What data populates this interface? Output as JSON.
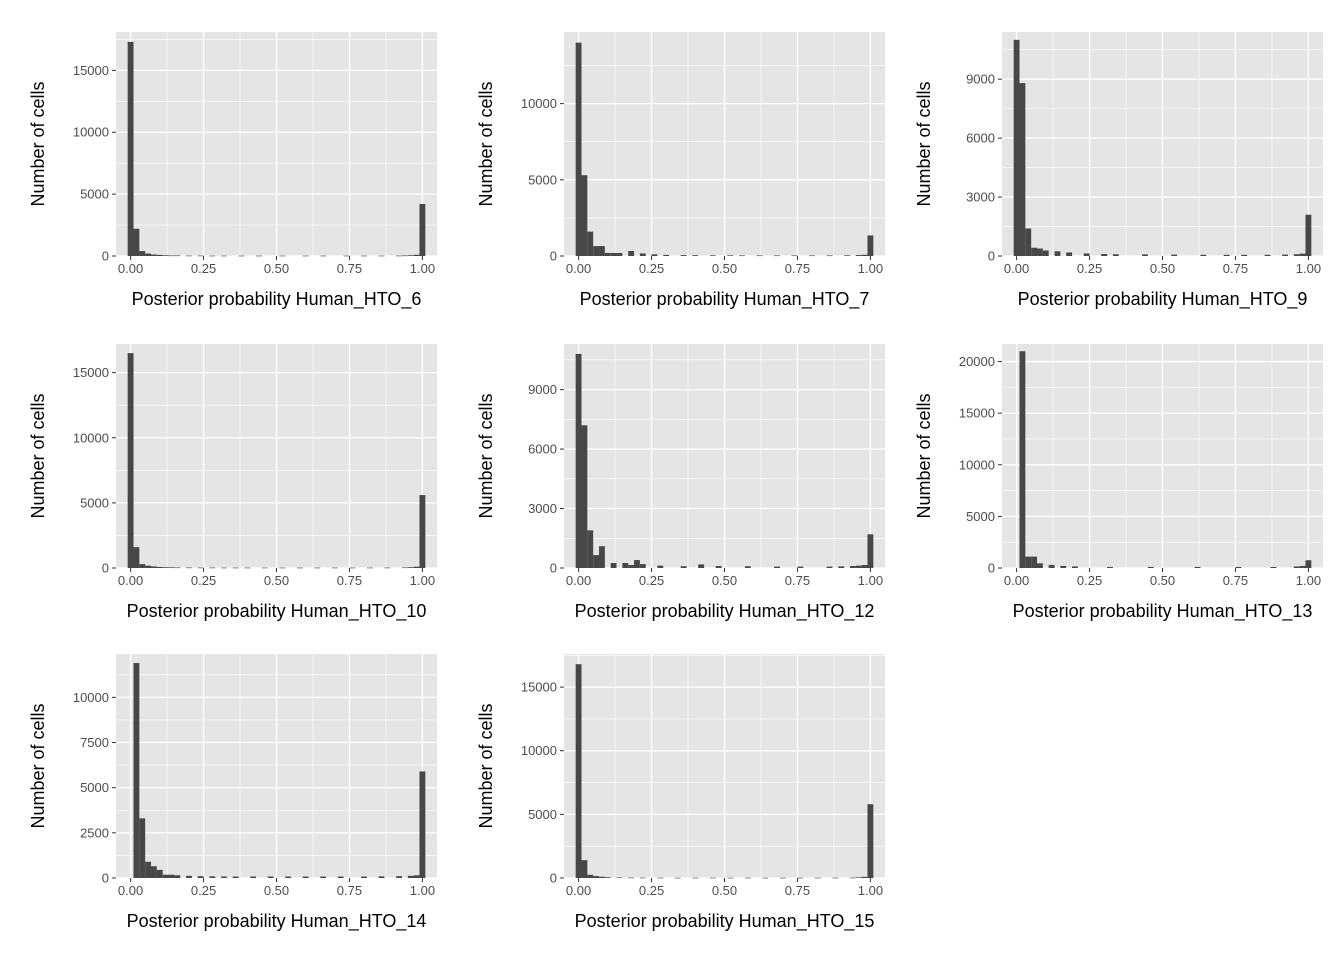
{
  "chart_data": [
    {
      "type": "bar",
      "title": "",
      "xlabel": "Posterior probability Human_HTO_6",
      "ylabel": "Number of cells",
      "xlim": [
        -0.05,
        1.05
      ],
      "ylim": [
        0,
        18100
      ],
      "x_ticks": [
        0.0,
        0.25,
        0.5,
        0.75,
        1.0
      ],
      "x_tick_labels": [
        "0.00",
        "0.25",
        "0.50",
        "0.75",
        "1.00"
      ],
      "y_ticks": [
        0,
        5000,
        10000,
        15000
      ],
      "y_tick_labels": [
        "0",
        "5000",
        "10000",
        "15000"
      ],
      "bin_width": 0.02,
      "bins": [
        {
          "x": 0.0,
          "count": 17300
        },
        {
          "x": 0.02,
          "count": 2200
        },
        {
          "x": 0.04,
          "count": 400
        },
        {
          "x": 0.06,
          "count": 200
        },
        {
          "x": 0.08,
          "count": 120
        },
        {
          "x": 0.1,
          "count": 90
        },
        {
          "x": 0.12,
          "count": 60
        },
        {
          "x": 0.14,
          "count": 40
        },
        {
          "x": 0.16,
          "count": 40
        },
        {
          "x": 0.2,
          "count": 30
        },
        {
          "x": 0.24,
          "count": 30
        },
        {
          "x": 0.28,
          "count": 25
        },
        {
          "x": 0.32,
          "count": 25
        },
        {
          "x": 0.38,
          "count": 25
        },
        {
          "x": 0.44,
          "count": 25
        },
        {
          "x": 0.52,
          "count": 25
        },
        {
          "x": 0.6,
          "count": 25
        },
        {
          "x": 0.66,
          "count": 25
        },
        {
          "x": 0.74,
          "count": 25
        },
        {
          "x": 0.8,
          "count": 25
        },
        {
          "x": 0.86,
          "count": 25
        },
        {
          "x": 0.92,
          "count": 30
        },
        {
          "x": 0.94,
          "count": 40
        },
        {
          "x": 0.96,
          "count": 60
        },
        {
          "x": 0.98,
          "count": 100
        },
        {
          "x": 1.0,
          "count": 4200
        }
      ]
    },
    {
      "type": "bar",
      "title": "",
      "xlabel": "Posterior probability Human_HTO_7",
      "ylabel": "Number of cells",
      "xlim": [
        -0.05,
        1.05
      ],
      "ylim": [
        0,
        14700
      ],
      "x_ticks": [
        0.0,
        0.25,
        0.5,
        0.75,
        1.0
      ],
      "x_tick_labels": [
        "0.00",
        "0.25",
        "0.50",
        "0.75",
        "1.00"
      ],
      "y_ticks": [
        0,
        5000,
        10000
      ],
      "y_tick_labels": [
        "0",
        "5000",
        "10000"
      ],
      "bin_width": 0.02,
      "bins": [
        {
          "x": 0.0,
          "count": 14000
        },
        {
          "x": 0.02,
          "count": 5300
        },
        {
          "x": 0.04,
          "count": 1600
        },
        {
          "x": 0.06,
          "count": 650
        },
        {
          "x": 0.08,
          "count": 650
        },
        {
          "x": 0.1,
          "count": 200
        },
        {
          "x": 0.12,
          "count": 200
        },
        {
          "x": 0.14,
          "count": 200
        },
        {
          "x": 0.18,
          "count": 330
        },
        {
          "x": 0.22,
          "count": 170
        },
        {
          "x": 0.26,
          "count": 110
        },
        {
          "x": 0.3,
          "count": 70
        },
        {
          "x": 0.36,
          "count": 60
        },
        {
          "x": 0.4,
          "count": 50
        },
        {
          "x": 0.46,
          "count": 40
        },
        {
          "x": 0.52,
          "count": 40
        },
        {
          "x": 0.56,
          "count": 35
        },
        {
          "x": 0.62,
          "count": 35
        },
        {
          "x": 0.68,
          "count": 35
        },
        {
          "x": 0.74,
          "count": 35
        },
        {
          "x": 0.8,
          "count": 35
        },
        {
          "x": 0.86,
          "count": 35
        },
        {
          "x": 0.92,
          "count": 40
        },
        {
          "x": 0.96,
          "count": 60
        },
        {
          "x": 0.98,
          "count": 80
        },
        {
          "x": 1.0,
          "count": 1350
        }
      ]
    },
    {
      "type": "bar",
      "title": "",
      "xlabel": "Posterior probability Human_HTO_9",
      "ylabel": "Number of cells",
      "xlim": [
        -0.05,
        1.05
      ],
      "ylim": [
        0,
        11400
      ],
      "x_ticks": [
        0.0,
        0.25,
        0.5,
        0.75,
        1.0
      ],
      "x_tick_labels": [
        "0.00",
        "0.25",
        "0.50",
        "0.75",
        "1.00"
      ],
      "y_ticks": [
        0,
        3000,
        6000,
        9000
      ],
      "y_tick_labels": [
        "0",
        "3000",
        "6000",
        "9000"
      ],
      "bin_width": 0.02,
      "bins": [
        {
          "x": 0.0,
          "count": 11000
        },
        {
          "x": 0.02,
          "count": 8800
        },
        {
          "x": 0.04,
          "count": 1400
        },
        {
          "x": 0.06,
          "count": 420
        },
        {
          "x": 0.08,
          "count": 380
        },
        {
          "x": 0.1,
          "count": 280
        },
        {
          "x": 0.14,
          "count": 240
        },
        {
          "x": 0.18,
          "count": 180
        },
        {
          "x": 0.24,
          "count": 130
        },
        {
          "x": 0.3,
          "count": 100
        },
        {
          "x": 0.34,
          "count": 90
        },
        {
          "x": 0.44,
          "count": 80
        },
        {
          "x": 0.54,
          "count": 70
        },
        {
          "x": 0.64,
          "count": 60
        },
        {
          "x": 0.72,
          "count": 60
        },
        {
          "x": 0.78,
          "count": 60
        },
        {
          "x": 0.86,
          "count": 60
        },
        {
          "x": 0.92,
          "count": 70
        },
        {
          "x": 0.96,
          "count": 90
        },
        {
          "x": 0.98,
          "count": 120
        },
        {
          "x": 1.0,
          "count": 2100
        }
      ]
    },
    {
      "type": "bar",
      "title": "",
      "xlabel": "Posterior probability Human_HTO_10",
      "ylabel": "Number of cells",
      "xlim": [
        -0.05,
        1.05
      ],
      "ylim": [
        0,
        17200
      ],
      "x_ticks": [
        0.0,
        0.25,
        0.5,
        0.75,
        1.0
      ],
      "x_tick_labels": [
        "0.00",
        "0.25",
        "0.50",
        "0.75",
        "1.00"
      ],
      "y_ticks": [
        0,
        5000,
        10000,
        15000
      ],
      "y_tick_labels": [
        "0",
        "5000",
        "10000",
        "15000"
      ],
      "bin_width": 0.02,
      "bins": [
        {
          "x": 0.0,
          "count": 16500
        },
        {
          "x": 0.02,
          "count": 1600
        },
        {
          "x": 0.04,
          "count": 300
        },
        {
          "x": 0.06,
          "count": 180
        },
        {
          "x": 0.08,
          "count": 120
        },
        {
          "x": 0.1,
          "count": 80
        },
        {
          "x": 0.12,
          "count": 60
        },
        {
          "x": 0.14,
          "count": 50
        },
        {
          "x": 0.16,
          "count": 40
        },
        {
          "x": 0.2,
          "count": 35
        },
        {
          "x": 0.24,
          "count": 30
        },
        {
          "x": 0.28,
          "count": 30
        },
        {
          "x": 0.32,
          "count": 25
        },
        {
          "x": 0.36,
          "count": 25
        },
        {
          "x": 0.4,
          "count": 25
        },
        {
          "x": 0.46,
          "count": 25
        },
        {
          "x": 0.52,
          "count": 25
        },
        {
          "x": 0.58,
          "count": 25
        },
        {
          "x": 0.64,
          "count": 25
        },
        {
          "x": 0.7,
          "count": 25
        },
        {
          "x": 0.76,
          "count": 25
        },
        {
          "x": 0.82,
          "count": 25
        },
        {
          "x": 0.88,
          "count": 30
        },
        {
          "x": 0.94,
          "count": 40
        },
        {
          "x": 0.96,
          "count": 60
        },
        {
          "x": 0.98,
          "count": 100
        },
        {
          "x": 1.0,
          "count": 5600
        }
      ]
    },
    {
      "type": "bar",
      "title": "",
      "xlabel": "Posterior probability Human_HTO_12",
      "ylabel": "Number of cells",
      "xlim": [
        -0.05,
        1.05
      ],
      "ylim": [
        0,
        11300
      ],
      "x_ticks": [
        0.0,
        0.25,
        0.5,
        0.75,
        1.0
      ],
      "x_tick_labels": [
        "0.00",
        "0.25",
        "0.50",
        "0.75",
        "1.00"
      ],
      "y_ticks": [
        0,
        3000,
        6000,
        9000
      ],
      "y_tick_labels": [
        "0",
        "3000",
        "6000",
        "9000"
      ],
      "bin_width": 0.02,
      "bins": [
        {
          "x": 0.0,
          "count": 10800
        },
        {
          "x": 0.02,
          "count": 7200
        },
        {
          "x": 0.04,
          "count": 1900
        },
        {
          "x": 0.06,
          "count": 650
        },
        {
          "x": 0.08,
          "count": 1100
        },
        {
          "x": 0.12,
          "count": 250
        },
        {
          "x": 0.16,
          "count": 250
        },
        {
          "x": 0.18,
          "count": 150
        },
        {
          "x": 0.2,
          "count": 400
        },
        {
          "x": 0.22,
          "count": 200
        },
        {
          "x": 0.28,
          "count": 120
        },
        {
          "x": 0.36,
          "count": 90
        },
        {
          "x": 0.42,
          "count": 180
        },
        {
          "x": 0.48,
          "count": 100
        },
        {
          "x": 0.58,
          "count": 90
        },
        {
          "x": 0.68,
          "count": 70
        },
        {
          "x": 0.76,
          "count": 70
        },
        {
          "x": 0.86,
          "count": 70
        },
        {
          "x": 0.9,
          "count": 80
        },
        {
          "x": 0.94,
          "count": 100
        },
        {
          "x": 0.96,
          "count": 120
        },
        {
          "x": 0.98,
          "count": 150
        },
        {
          "x": 1.0,
          "count": 1700
        }
      ]
    },
    {
      "type": "bar",
      "title": "",
      "xlabel": "Posterior probability Human_HTO_13",
      "ylabel": "Number of cells",
      "xlim": [
        -0.05,
        1.05
      ],
      "ylim": [
        0,
        21700
      ],
      "x_ticks": [
        0.0,
        0.25,
        0.5,
        0.75,
        1.0
      ],
      "x_tick_labels": [
        "0.00",
        "0.25",
        "0.50",
        "0.75",
        "1.00"
      ],
      "y_ticks": [
        0,
        5000,
        10000,
        15000,
        20000
      ],
      "y_tick_labels": [
        "0",
        "5000",
        "10000",
        "15000",
        "20000"
      ],
      "bin_width": 0.02,
      "bins": [
        {
          "x": 0.02,
          "count": 21000
        },
        {
          "x": 0.04,
          "count": 1100
        },
        {
          "x": 0.06,
          "count": 1100
        },
        {
          "x": 0.08,
          "count": 450
        },
        {
          "x": 0.12,
          "count": 300
        },
        {
          "x": 0.16,
          "count": 200
        },
        {
          "x": 0.2,
          "count": 150
        },
        {
          "x": 0.32,
          "count": 100
        },
        {
          "x": 0.46,
          "count": 100
        },
        {
          "x": 0.62,
          "count": 100
        },
        {
          "x": 0.76,
          "count": 100
        },
        {
          "x": 0.88,
          "count": 100
        },
        {
          "x": 0.96,
          "count": 150
        },
        {
          "x": 0.98,
          "count": 200
        },
        {
          "x": 1.0,
          "count": 750
        }
      ]
    },
    {
      "type": "bar",
      "title": "",
      "xlabel": "Posterior probability Human_HTO_14",
      "ylabel": "Number of cells",
      "xlim": [
        -0.05,
        1.05
      ],
      "ylim": [
        0,
        12400
      ],
      "x_ticks": [
        0.0,
        0.25,
        0.5,
        0.75,
        1.0
      ],
      "x_tick_labels": [
        "0.00",
        "0.25",
        "0.50",
        "0.75",
        "1.00"
      ],
      "y_ticks": [
        0,
        2500,
        5000,
        7500,
        10000
      ],
      "y_tick_labels": [
        "0",
        "2500",
        "5000",
        "7500",
        "10000"
      ],
      "bin_width": 0.02,
      "bins": [
        {
          "x": 0.02,
          "count": 11900
        },
        {
          "x": 0.04,
          "count": 3300
        },
        {
          "x": 0.06,
          "count": 900
        },
        {
          "x": 0.08,
          "count": 650
        },
        {
          "x": 0.1,
          "count": 450
        },
        {
          "x": 0.12,
          "count": 180
        },
        {
          "x": 0.14,
          "count": 180
        },
        {
          "x": 0.16,
          "count": 150
        },
        {
          "x": 0.2,
          "count": 120
        },
        {
          "x": 0.24,
          "count": 100
        },
        {
          "x": 0.28,
          "count": 90
        },
        {
          "x": 0.32,
          "count": 80
        },
        {
          "x": 0.36,
          "count": 80
        },
        {
          "x": 0.42,
          "count": 80
        },
        {
          "x": 0.48,
          "count": 80
        },
        {
          "x": 0.54,
          "count": 80
        },
        {
          "x": 0.6,
          "count": 80
        },
        {
          "x": 0.66,
          "count": 80
        },
        {
          "x": 0.72,
          "count": 80
        },
        {
          "x": 0.8,
          "count": 80
        },
        {
          "x": 0.86,
          "count": 90
        },
        {
          "x": 0.92,
          "count": 100
        },
        {
          "x": 0.96,
          "count": 120
        },
        {
          "x": 0.98,
          "count": 150
        },
        {
          "x": 1.0,
          "count": 5900
        }
      ]
    },
    {
      "type": "bar",
      "title": "",
      "xlabel": "Posterior probability Human_HTO_15",
      "ylabel": "Number of cells",
      "xlim": [
        -0.05,
        1.05
      ],
      "ylim": [
        0,
        17600
      ],
      "x_ticks": [
        0.0,
        0.25,
        0.5,
        0.75,
        1.0
      ],
      "x_tick_labels": [
        "0.00",
        "0.25",
        "0.50",
        "0.75",
        "1.00"
      ],
      "y_ticks": [
        0,
        5000,
        10000,
        15000
      ],
      "y_tick_labels": [
        "0",
        "5000",
        "10000",
        "15000"
      ],
      "bin_width": 0.02,
      "bins": [
        {
          "x": 0.0,
          "count": 16800
        },
        {
          "x": 0.02,
          "count": 1400
        },
        {
          "x": 0.04,
          "count": 250
        },
        {
          "x": 0.06,
          "count": 150
        },
        {
          "x": 0.08,
          "count": 100
        },
        {
          "x": 0.1,
          "count": 60
        },
        {
          "x": 0.14,
          "count": 40
        },
        {
          "x": 0.18,
          "count": 30
        },
        {
          "x": 0.22,
          "count": 25
        },
        {
          "x": 0.28,
          "count": 20
        },
        {
          "x": 0.34,
          "count": 20
        },
        {
          "x": 0.4,
          "count": 20
        },
        {
          "x": 0.46,
          "count": 20
        },
        {
          "x": 0.52,
          "count": 20
        },
        {
          "x": 0.58,
          "count": 20
        },
        {
          "x": 0.64,
          "count": 20
        },
        {
          "x": 0.7,
          "count": 20
        },
        {
          "x": 0.76,
          "count": 20
        },
        {
          "x": 0.82,
          "count": 20
        },
        {
          "x": 0.88,
          "count": 25
        },
        {
          "x": 0.94,
          "count": 30
        },
        {
          "x": 0.96,
          "count": 50
        },
        {
          "x": 0.98,
          "count": 90
        },
        {
          "x": 1.0,
          "count": 5800
        }
      ]
    }
  ],
  "colors": {
    "panel_background": "#e5e5e5",
    "grid_major": "#ffffff",
    "bar_fill": "#474747",
    "axis_text": "#4d4d4d",
    "title_text": "#000000",
    "tick": "#333333"
  }
}
